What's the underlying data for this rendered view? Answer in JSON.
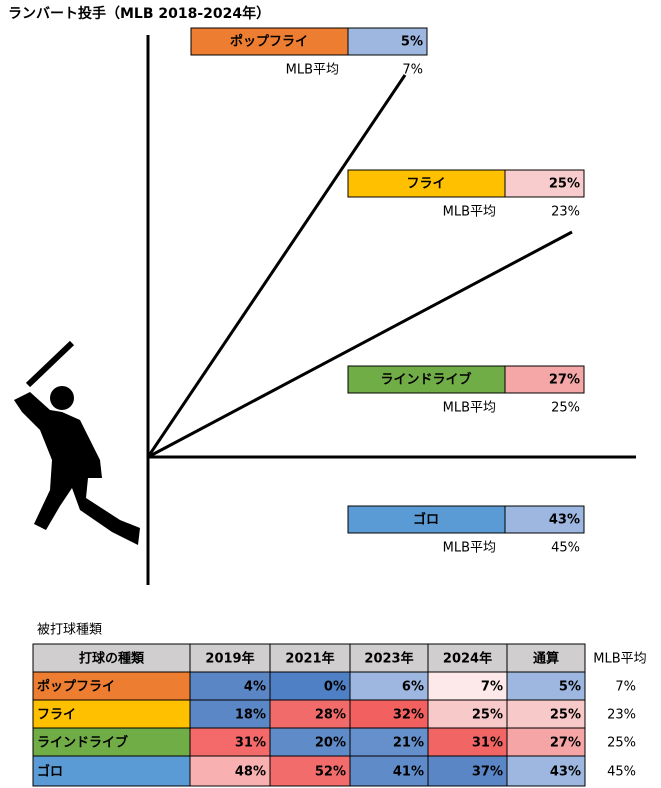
{
  "title": "ランバート投手（MLB 2018-2024年）",
  "zones": [
    {
      "label": "ポップフライ",
      "value": "5%",
      "mlb_label": "MLB平均",
      "mlb_value": "7%",
      "color": "#ed7d31",
      "value_color": "#9db7e0"
    },
    {
      "label": "フライ",
      "value": "25%",
      "mlb_label": "MLB平均",
      "mlb_value": "23%",
      "color": "#ffc000",
      "value_color": "#f8cccc"
    },
    {
      "label": "ラインドライブ",
      "value": "27%",
      "mlb_label": "MLB平均",
      "mlb_value": "25%",
      "color": "#70ad47",
      "value_color": "#f5a6a6"
    },
    {
      "label": "ゴロ",
      "value": "43%",
      "mlb_label": "MLB平均",
      "mlb_value": "45%",
      "color": "#5b9bd5",
      "value_color": "#9db7e0"
    }
  ],
  "table": {
    "caption": "被打球種類",
    "header": [
      "打球の種類",
      "2019年",
      "2021年",
      "2023年",
      "2024年",
      "通算",
      "MLB平均"
    ],
    "rows": [
      [
        "ポップフライ",
        "4%",
        "0%",
        "6%",
        "7%",
        "5%",
        "7%"
      ],
      [
        "フライ",
        "18%",
        "28%",
        "32%",
        "25%",
        "25%",
        "23%"
      ],
      [
        "ラインドライブ",
        "31%",
        "20%",
        "21%",
        "31%",
        "27%",
        "25%"
      ],
      [
        "ゴロ",
        "48%",
        "52%",
        "41%",
        "37%",
        "43%",
        "45%"
      ]
    ],
    "colors": [
      [
        "#ed7d31",
        "#5b86c5",
        "#4f7fc4",
        "#9db7e0",
        "#fde9e9",
        "#9db7e0"
      ],
      [
        "#ffc000",
        "#5b87c6",
        "#f26b6b",
        "#f26060",
        "#f8c9c9",
        "#f8c9c9"
      ],
      [
        "#70ad47",
        "#f46a6a",
        "#5f8bc8",
        "#6690cb",
        "#f26565",
        "#f5a5a5"
      ],
      [
        "#5b9bd5",
        "#f8b0b0",
        "#f26c6c",
        "#5f8bc8",
        "#5b86c5",
        "#9db7e0"
      ]
    ]
  }
}
